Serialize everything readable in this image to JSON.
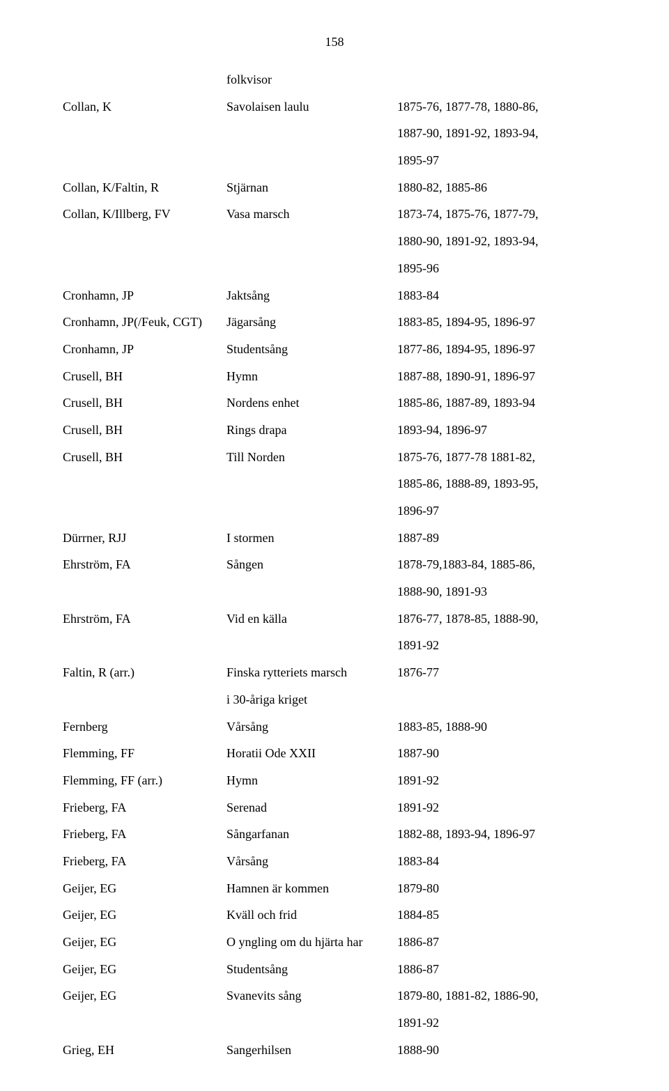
{
  "page_number": "158",
  "header_row": {
    "composer": "",
    "title": "folkvisor",
    "years": ""
  },
  "rows": [
    {
      "composer": "Collan, K",
      "title": "Savolaisen laulu",
      "years": "1875-76, 1877-78, 1880-86,"
    },
    {
      "composer": "",
      "title": "",
      "years": "1887-90, 1891-92, 1893-94,"
    },
    {
      "composer": "",
      "title": "",
      "years": "1895-97"
    },
    {
      "composer": "Collan, K/Faltin, R",
      "title": "Stjärnan",
      "years": "1880-82, 1885-86"
    },
    {
      "composer": "Collan, K/Illberg, FV",
      "title": "Vasa marsch",
      "years": "1873-74, 1875-76, 1877-79,"
    },
    {
      "composer": "",
      "title": "",
      "years": "1880-90, 1891-92, 1893-94,"
    },
    {
      "composer": "",
      "title": "",
      "years": "1895-96"
    },
    {
      "composer": "Cronhamn, JP",
      "title": "Jaktsång",
      "years": "1883-84"
    },
    {
      "composer": "Cronhamn, JP(/Feuk, CGT)",
      "title": "Jägarsång",
      "years": "1883-85, 1894-95, 1896-97"
    },
    {
      "composer": "Cronhamn, JP",
      "title": "Studentsång",
      "years": "1877-86, 1894-95, 1896-97"
    },
    {
      "composer": "Crusell, BH",
      "title": "Hymn",
      "years": "1887-88, 1890-91, 1896-97"
    },
    {
      "composer": "Crusell, BH",
      "title": "Nordens enhet",
      "years": "1885-86, 1887-89, 1893-94"
    },
    {
      "composer": "Crusell, BH",
      "title": "Rings drapa",
      "years": "1893-94, 1896-97"
    },
    {
      "composer": "Crusell, BH",
      "title": "Till Norden",
      "years": "1875-76, 1877-78 1881-82,"
    },
    {
      "composer": "",
      "title": "",
      "years": "1885-86, 1888-89, 1893-95,"
    },
    {
      "composer": "",
      "title": "",
      "years": "1896-97"
    },
    {
      "composer": "Dürrner, RJJ",
      "title": "I stormen",
      "years": "1887-89"
    },
    {
      "composer": "Ehrström, FA",
      "title": "Sången",
      "years": "1878-79,1883-84, 1885-86,"
    },
    {
      "composer": "",
      "title": "",
      "years": "1888-90, 1891-93"
    },
    {
      "composer": "Ehrström, FA",
      "title": "Vid en källa",
      "years": "1876-77, 1878-85, 1888-90,"
    },
    {
      "composer": "",
      "title": "",
      "years": "1891-92"
    },
    {
      "composer": "Faltin, R (arr.)",
      "title": "Finska rytteriets marsch",
      "years": "1876-77"
    },
    {
      "composer": "",
      "title": "i 30-åriga kriget",
      "years": ""
    },
    {
      "composer": "Fernberg",
      "title": "Vårsång",
      "years": "1883-85, 1888-90"
    },
    {
      "composer": "Flemming, FF",
      "title": "Horatii Ode XXII",
      "years": "1887-90"
    },
    {
      "composer": "Flemming, FF (arr.)",
      "title": "Hymn",
      "years": "1891-92"
    },
    {
      "composer": "Frieberg, FA",
      "title": "Serenad",
      "years": "1891-92"
    },
    {
      "composer": "Frieberg, FA",
      "title": "Sångarfanan",
      "years": "1882-88, 1893-94, 1896-97"
    },
    {
      "composer": "Frieberg, FA",
      "title": "Vårsång",
      "years": "1883-84"
    },
    {
      "composer": "Geijer, EG",
      "title": "Hamnen är kommen",
      "years": "1879-80"
    },
    {
      "composer": "Geijer, EG",
      "title": "Kväll och frid",
      "years": "1884-85"
    },
    {
      "composer": "Geijer, EG",
      "title": "O yngling om du hjärta har",
      "years": "1886-87"
    },
    {
      "composer": "Geijer, EG",
      "title": "Studentsång",
      "years": "1886-87"
    },
    {
      "composer": "Geijer, EG",
      "title": "Svanevits sång",
      "years": "1879-80, 1881-82, 1886-90,"
    },
    {
      "composer": "",
      "title": "",
      "years": "1891-92"
    },
    {
      "composer": "Grieg, EH",
      "title": "Sangerhilsen",
      "years": "1888-90"
    }
  ]
}
